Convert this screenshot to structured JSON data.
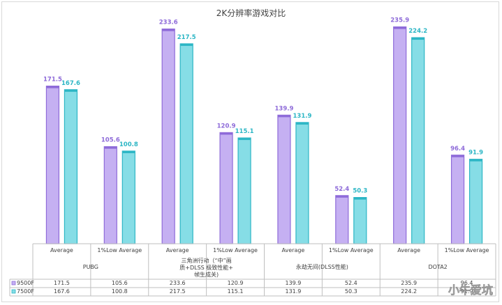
{
  "chart_data": {
    "type": "bar",
    "title": "2K分辨率游戏对比",
    "groups": [
      {
        "name": "PUBG",
        "name_lines": [
          "PUBG"
        ],
        "subcategories": [
          "Average",
          "1%Low Average"
        ]
      },
      {
        "name": "三角洲行动（“中”画质+DLSS 极致性能+帧生成关）",
        "name_lines": [
          "三角洲行动（“中”画",
          "质+DLSS 极致性能+",
          "帧生成关)"
        ],
        "subcategories": [
          "Average",
          "1%Low Average"
        ]
      },
      {
        "name": "永劫无间(DLSS性能)",
        "name_lines": [
          "永劫无间(DLSS性能)"
        ],
        "subcategories": [
          "Average",
          "1%Low Average"
        ]
      },
      {
        "name": "DOTA2",
        "name_lines": [
          "DOTA2"
        ],
        "subcategories": [
          "Average",
          "1%Low Average"
        ]
      }
    ],
    "series": [
      {
        "name": "9500F",
        "color": "#c5b0f2",
        "edge": "#8e6bd9",
        "label_color": "#8e6bd9",
        "values": [
          171.5,
          105.6,
          233.6,
          120.9,
          139.9,
          52.4,
          235.9,
          96.4
        ]
      },
      {
        "name": "7500F",
        "color": "#86dde6",
        "edge": "#2cb6c5",
        "label_color": "#2cb6c5",
        "values": [
          167.6,
          100.8,
          217.5,
          115.1,
          131.9,
          50.3,
          224.2,
          91.9
        ]
      }
    ],
    "ylim": [
      0,
      250
    ],
    "grid": false,
    "legend": "data-table"
  },
  "watermark": "小牛爱坑"
}
